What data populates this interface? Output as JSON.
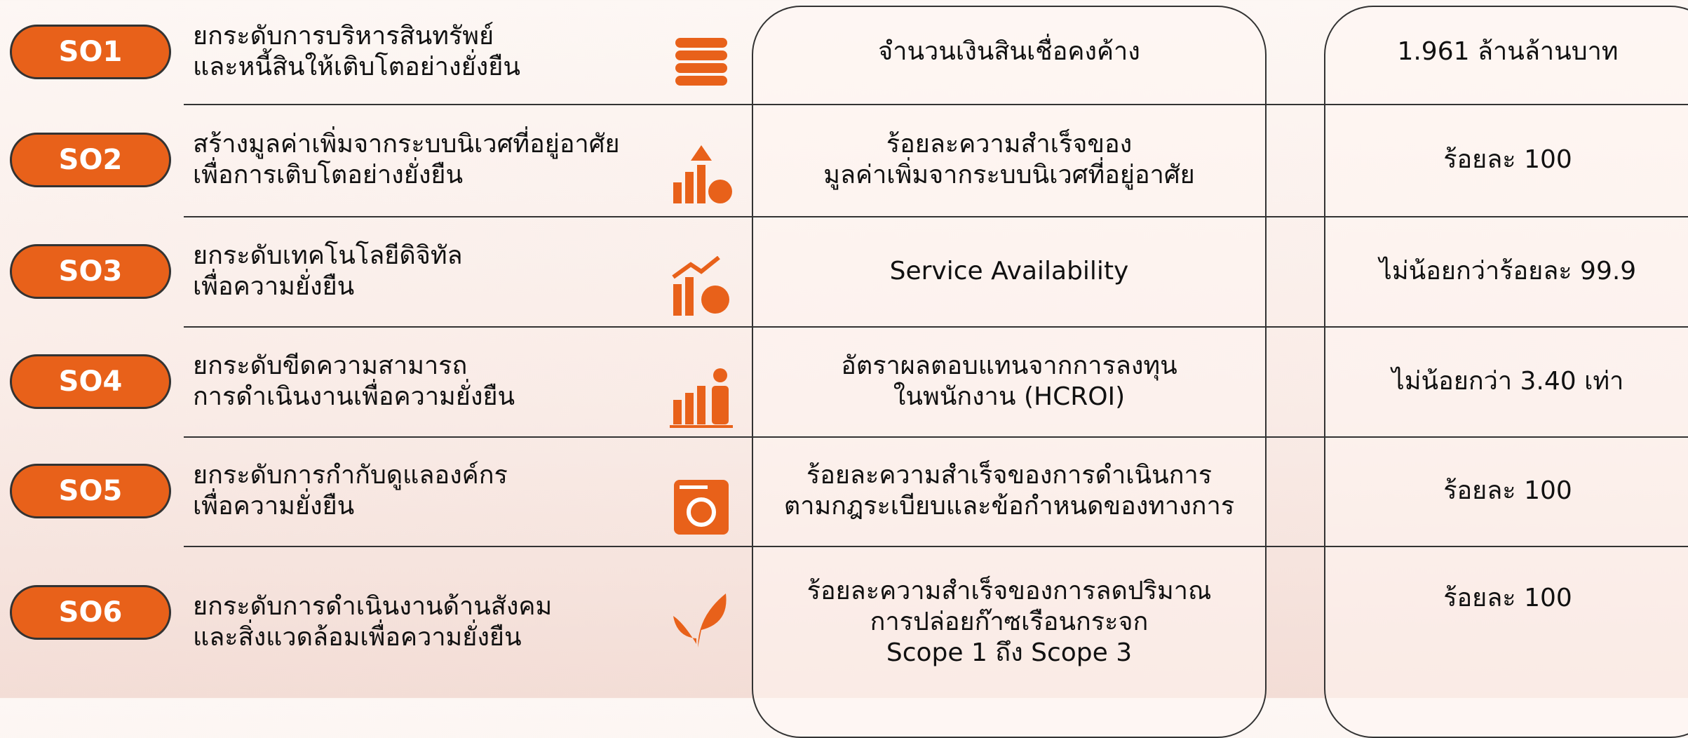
{
  "rows": [
    {
      "badge": "SO1",
      "objective": [
        "ยกระดับการบริหารสินทรัพย์",
        "และหนี้สินให้เติบโตอย่างยั่งยืน"
      ],
      "kpi": [
        "จำนวนเงินสินเชื่อคงค้าง"
      ],
      "target": "1.961 ล้านล้านบาท"
    },
    {
      "badge": "SO2",
      "objective": [
        "สร้างมูลค่าเพิ่มจากระบบนิเวศที่อยู่อาศัย",
        "เพื่อการเติบโตอย่างยั่งยืน"
      ],
      "kpi": [
        "ร้อยละความสำเร็จของ",
        "มูลค่าเพิ่มจากระบบนิเวศที่อยู่อาศัย"
      ],
      "target": "ร้อยละ 100"
    },
    {
      "badge": "SO3",
      "objective": [
        "ยกระดับเทคโนโลยีดิจิทัล",
        "เพื่อความยั่งยืน"
      ],
      "kpi": [
        "Service Availability"
      ],
      "target": "ไม่น้อยกว่าร้อยละ 99.9"
    },
    {
      "badge": "SO4",
      "objective": [
        "ยกระดับขีดความสามารถ",
        "การดำเนินงานเพื่อความยั่งยืน"
      ],
      "kpi": [
        "อัตราผลตอบแทนจากการลงทุน",
        "ในพนักงาน (HCROI)"
      ],
      "target": "ไม่น้อยกว่า 3.40 เท่า"
    },
    {
      "badge": "SO5",
      "objective": [
        "ยกระดับการกำกับดูแลองค์กร",
        "เพื่อความยั่งยืน"
      ],
      "kpi": [
        "ร้อยละความสำเร็จของการดำเนินการ",
        "ตามกฎระเบียบและข้อกำหนดของทางการ"
      ],
      "target": "ร้อยละ 100"
    },
    {
      "badge": "SO6",
      "objective": [
        "ยกระดับการดำเนินงานด้านสังคม",
        "และสิ่งแวดล้อมเพื่อความยั่งยืน"
      ],
      "kpi": [
        "ร้อยละความสำเร็จของการลดปริมาณ",
        "การปล่อยก๊าซเรือนกระจก",
        "Scope 1 ถึง Scope 3"
      ],
      "target": "ร้อยละ 100"
    }
  ]
}
